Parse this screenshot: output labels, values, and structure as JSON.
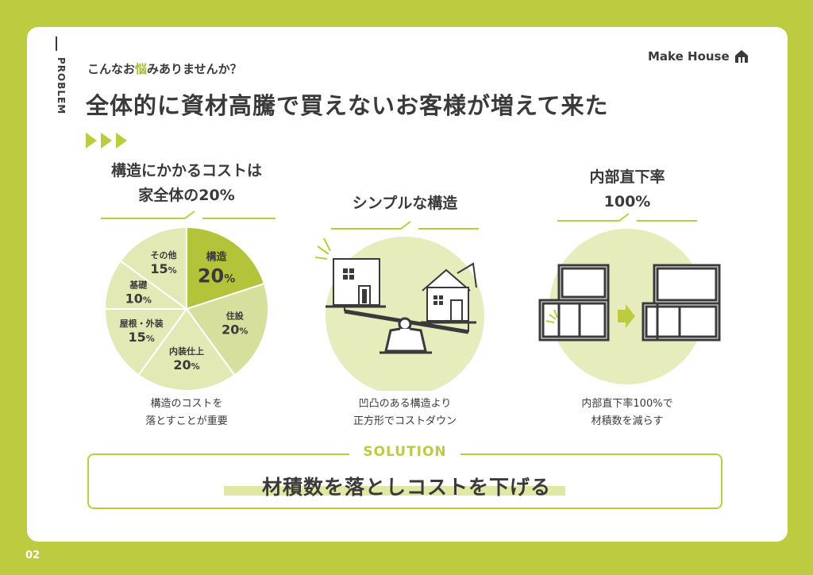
{
  "page": {
    "number": "02",
    "section_label": "PROBLEM",
    "subtitle_before": "こんなお",
    "subtitle_highlight": "悩",
    "subtitle_after": "みありませんか？",
    "title": "全体的に資材高騰で買えないお客様が増えて来た",
    "brand": "Make House"
  },
  "columns": [
    {
      "heading_line1": "構造にかかるコストは",
      "heading_line2": "家全体の20%",
      "caption_line1": "構造のコストを",
      "caption_line2": "落とすことが重要"
    },
    {
      "heading_line1": "シンプルな構造",
      "caption_line1": "凹凸のある構造より",
      "caption_line2": "正方形でコストダウン"
    },
    {
      "heading_line1": "内部直下率",
      "heading_line2": "100%",
      "caption_line1": "内部直下率100%で",
      "caption_line2": "材積数を減らす"
    }
  ],
  "chart_data": {
    "type": "pie",
    "slices": [
      {
        "label": "構造",
        "value": 20,
        "display": "20",
        "unit": "%",
        "color": "#b3c43a"
      },
      {
        "label": "住設",
        "value": 20,
        "display": "20",
        "unit": "%",
        "color": "#d7df9c"
      },
      {
        "label": "内装仕上",
        "value": 20,
        "display": "20",
        "unit": "%",
        "color": "#e3e9b5"
      },
      {
        "label": "屋根・外装",
        "value": 15,
        "display": "15",
        "unit": "%",
        "color": "#e3e9b5"
      },
      {
        "label": "基礎",
        "value": 10,
        "display": "10",
        "unit": "%",
        "color": "#e3e9b5"
      },
      {
        "label": "その他",
        "value": 15,
        "display": "15",
        "unit": "%",
        "color": "#e3e9b5"
      }
    ]
  },
  "solution": {
    "label": "SOLUTION",
    "text": "材積数を落としコストを下げる"
  },
  "colors": {
    "accent": "#bccb3f",
    "dark": "#3a3a3a",
    "pale": "#e3e9b5"
  },
  "icons": [
    "house-logo-icon",
    "triple-arrow-icon",
    "balance-scale-icon",
    "box-house-icon",
    "gable-house-icon",
    "frame-before-icon",
    "frame-after-icon",
    "right-arrow-icon"
  ]
}
